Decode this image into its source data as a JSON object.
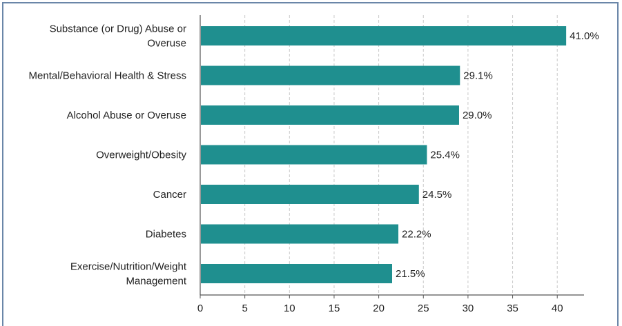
{
  "chart_data": {
    "type": "bar",
    "orientation": "horizontal",
    "categories": [
      [
        "Substance (or Drug) Abuse or",
        "Overuse"
      ],
      [
        "Mental/Behavioral Health & Stress"
      ],
      [
        "Alcohol Abuse or Overuse"
      ],
      [
        "Overweight/Obesity"
      ],
      [
        "Cancer"
      ],
      [
        "Diabetes"
      ],
      [
        "Exercise/Nutrition/Weight",
        "Management"
      ]
    ],
    "values": [
      41.0,
      29.1,
      29.0,
      25.4,
      24.5,
      22.2,
      21.5
    ],
    "value_labels": [
      "41.0%",
      "29.1%",
      "29.0%",
      "25.4%",
      "24.5%",
      "22.2%",
      "21.5%"
    ],
    "xlim": [
      0,
      43
    ],
    "xticks": [
      0,
      5,
      10,
      15,
      20,
      25,
      30,
      35,
      40
    ],
    "grid": "vertical dashed",
    "legend": "none",
    "title": "",
    "xlabel": "",
    "ylabel": ""
  },
  "colors": {
    "bar": "#1f8f8f",
    "grid": "#c9c9c9",
    "axis": "#555555",
    "frame": "#6a86a8"
  }
}
